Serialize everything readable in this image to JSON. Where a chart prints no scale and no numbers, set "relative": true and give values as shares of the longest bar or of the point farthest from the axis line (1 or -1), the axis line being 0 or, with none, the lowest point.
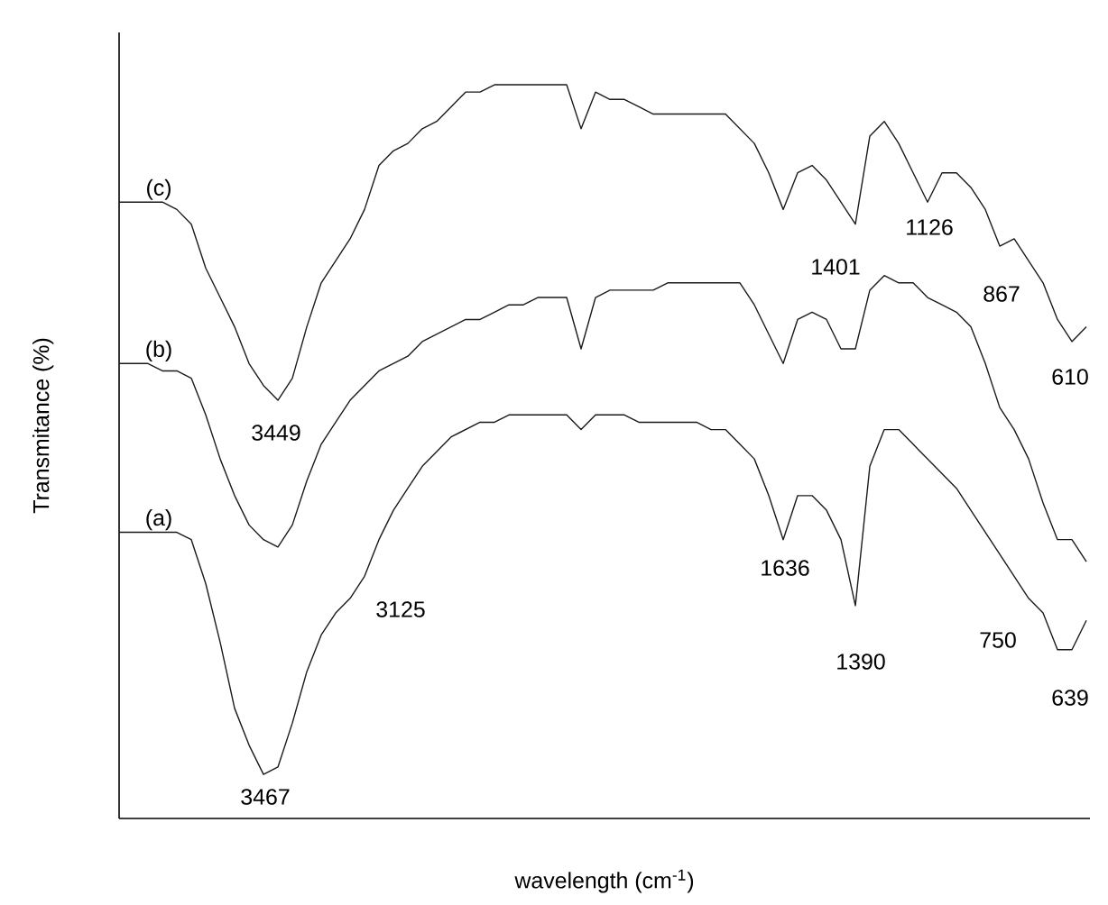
{
  "chart_data": {
    "type": "line",
    "relative": true,
    "xlabel": "wavelength (cm$^{-1}$)",
    "ylabel": "Transmitance (%)",
    "categories": [
      null,
      null,
      null,
      null,
      null,
      null,
      null,
      null,
      null,
      null,
      null,
      null,
      null,
      null,
      null,
      null,
      null,
      null,
      null,
      null,
      null,
      null,
      null,
      null,
      null,
      null,
      null,
      null,
      null,
      null,
      null,
      null,
      null,
      null,
      null,
      null,
      null,
      null,
      null,
      null,
      null,
      null,
      null,
      null,
      null,
      null,
      null,
      null,
      null,
      null,
      null,
      null,
      null,
      null,
      null,
      null,
      null,
      null,
      null,
      null,
      null,
      null,
      null,
      null,
      null,
      null,
      null,
      null
    ],
    "series": [
      {
        "name": "(a)",
        "color": "#1a1a1a",
        "values": [
          0.39,
          0.39,
          0.39,
          0.39,
          0.39,
          0.38,
          0.32,
          0.24,
          0.15,
          0.1,
          0.06,
          0.07,
          0.13,
          0.2,
          0.25,
          0.28,
          0.3,
          0.33,
          0.38,
          0.42,
          0.45,
          0.48,
          0.5,
          0.52,
          0.53,
          0.54,
          0.54,
          0.55,
          0.55,
          0.55,
          0.55,
          0.55,
          0.53,
          0.55,
          0.55,
          0.55,
          0.54,
          0.54,
          0.54,
          0.54,
          0.54,
          0.53,
          0.53,
          0.51,
          0.49,
          0.44,
          0.38,
          0.44,
          0.44,
          0.42,
          0.38,
          0.29,
          0.48,
          0.53,
          0.53,
          0.51,
          0.49,
          0.47,
          0.45,
          0.42,
          0.39,
          0.36,
          0.33,
          0.3,
          0.28,
          0.23,
          0.23,
          0.27
        ]
      },
      {
        "name": "(b)",
        "color": "#1a1a1a",
        "values": [
          0.62,
          0.62,
          0.62,
          0.61,
          0.61,
          0.6,
          0.55,
          0.49,
          0.44,
          0.4,
          0.38,
          0.37,
          0.4,
          0.46,
          0.51,
          0.54,
          0.57,
          0.59,
          0.61,
          0.62,
          0.63,
          0.65,
          0.66,
          0.67,
          0.68,
          0.68,
          0.69,
          0.7,
          0.7,
          0.71,
          0.71,
          0.71,
          0.64,
          0.71,
          0.72,
          0.72,
          0.72,
          0.72,
          0.73,
          0.73,
          0.73,
          0.73,
          0.73,
          0.73,
          0.7,
          0.66,
          0.62,
          0.68,
          0.69,
          0.68,
          0.64,
          0.64,
          0.72,
          0.74,
          0.73,
          0.73,
          0.71,
          0.7,
          0.69,
          0.67,
          0.62,
          0.56,
          0.53,
          0.49,
          0.43,
          0.38,
          0.38,
          0.35
        ]
      },
      {
        "name": "(c)",
        "color": "#1a1a1a",
        "values": [
          0.84,
          0.84,
          0.84,
          0.84,
          0.83,
          0.81,
          0.75,
          0.71,
          0.67,
          0.62,
          0.59,
          0.57,
          0.6,
          0.67,
          0.73,
          0.76,
          0.79,
          0.83,
          0.89,
          0.91,
          0.92,
          0.94,
          0.95,
          0.97,
          0.99,
          0.99,
          1.0,
          1.0,
          1.0,
          1.0,
          1.0,
          1.0,
          0.94,
          0.99,
          0.98,
          0.98,
          0.97,
          0.96,
          0.96,
          0.96,
          0.96,
          0.96,
          0.96,
          0.94,
          0.92,
          0.88,
          0.83,
          0.88,
          0.89,
          0.87,
          0.84,
          0.81,
          0.93,
          0.95,
          0.92,
          0.88,
          0.84,
          0.88,
          0.88,
          0.86,
          0.83,
          0.78,
          0.79,
          0.76,
          0.73,
          0.68,
          0.65,
          0.67
        ]
      }
    ],
    "annotations": [
      "3449",
      "3467",
      "3125",
      "1636",
      "1390",
      "1401",
      "1126",
      "867",
      "610",
      "750",
      "639"
    ]
  }
}
